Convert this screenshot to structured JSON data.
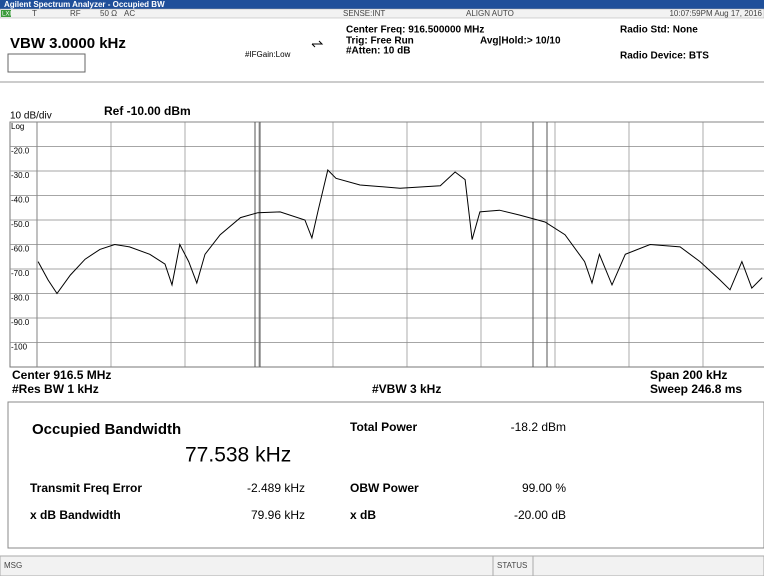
{
  "window_title": "Agilent Spectrum Analyzer - Occupied BW",
  "status_top": {
    "lxi": "LXI",
    "t": "T",
    "rf": "RF",
    "impedance": "50 Ω",
    "coupling": "AC",
    "sense": "SENSE:INT",
    "align": "ALIGN AUTO",
    "time": "10:07:59PM Aug 17, 2016"
  },
  "header": {
    "vbw": "VBW 3.0000 kHz",
    "center_freq": "Center Freq: 916.500000 MHz",
    "trig": "Trig: Free Run",
    "atten": "#Atten: 10 dB",
    "avg_hold": "Avg|Hold:> 10/10",
    "if_gain": "#IFGain:Low",
    "radio_std": "Radio Std: None",
    "radio_device": "Radio Device: BTS"
  },
  "display": {
    "scale": "10 dB/div",
    "ref": "Ref -10.00 dBm",
    "center": "Center 916.5 MHz",
    "res_bw": "#Res BW 1 kHz",
    "vbw": "#VBW 3 kHz",
    "span": "Span 200 kHz",
    "sweep": "Sweep 246.8 ms"
  },
  "results": {
    "occupied_bandwidth_label": "Occupied Bandwidth",
    "occupied_bandwidth": "77.538 kHz",
    "transmit_freq_error_label": "Transmit Freq Error",
    "transmit_freq_error": "-2.489 kHz",
    "xdb_bandwidth_label": "x dB Bandwidth",
    "xdb_bandwidth": "79.96 kHz",
    "total_power_label": "Total Power",
    "total_power": "-18.2 dBm",
    "obw_power_label": "OBW Power",
    "obw_power": "99.00 %",
    "xdb_label": "x dB",
    "xdb": "-20.00 dB"
  },
  "footer": {
    "msg": "MSG",
    "status": "STATUS"
  },
  "chart_data": {
    "type": "line",
    "x": [
      -99.7,
      -97,
      -94.6,
      -91,
      -87,
      -83,
      -79,
      -75,
      -69.5,
      -65.4,
      -63.5,
      -61.4,
      -59,
      -56.8,
      -54.6,
      -50.5,
      -45,
      -40.3,
      -34.3,
      -27.6,
      -25.7,
      -24,
      -21.4,
      -19.2,
      -12.7,
      -1.9,
      9,
      13,
      15.7,
      17.6,
      19.7,
      25,
      30.5,
      37.3,
      42.7,
      48,
      50,
      52,
      55.4,
      59,
      65.7,
      73.8,
      79.2,
      84.6,
      87.3,
      90.5,
      93.2,
      96
    ],
    "series": [
      {
        "color": "#000000",
        "values": [
          -67,
          -74.5,
          -80,
          -72.5,
          -66,
          -62,
          -60,
          -61,
          -64,
          -68,
          -76.5,
          -60,
          -67,
          -75.7,
          -64,
          -56,
          -49,
          -47,
          -46.7,
          -50,
          -57.3,
          -46,
          -29.6,
          -33,
          -35.7,
          -37,
          -36,
          -30.4,
          -33.5,
          -58,
          -46.7,
          -46,
          -48,
          -50.8,
          -56,
          -67,
          -75.7,
          -64,
          -76.5,
          -64,
          -60,
          -61,
          -67,
          -74.5,
          -78.5,
          -67,
          -77.8,
          -73.5
        ]
      }
    ],
    "xlim": [
      -100,
      100
    ],
    "xticks": [
      -100,
      -80,
      -60,
      -40,
      -20,
      0,
      20,
      40,
      60,
      80,
      100
    ],
    "ylim": [
      -110,
      -10
    ],
    "yticks": [
      {
        "value": -10,
        "label": "Log"
      },
      {
        "value": -20,
        "label": "-20.0"
      },
      {
        "value": -30,
        "label": "-30.0"
      },
      {
        "value": -40,
        "label": "-40.0"
      },
      {
        "value": -50,
        "label": "-50.0"
      },
      {
        "value": -60,
        "label": "-60.0"
      },
      {
        "value": -70,
        "label": "-70.0"
      },
      {
        "value": -80,
        "label": "-80.0"
      },
      {
        "value": -90,
        "label": "-90.0"
      },
      -100
    ],
    "grid": true
  }
}
